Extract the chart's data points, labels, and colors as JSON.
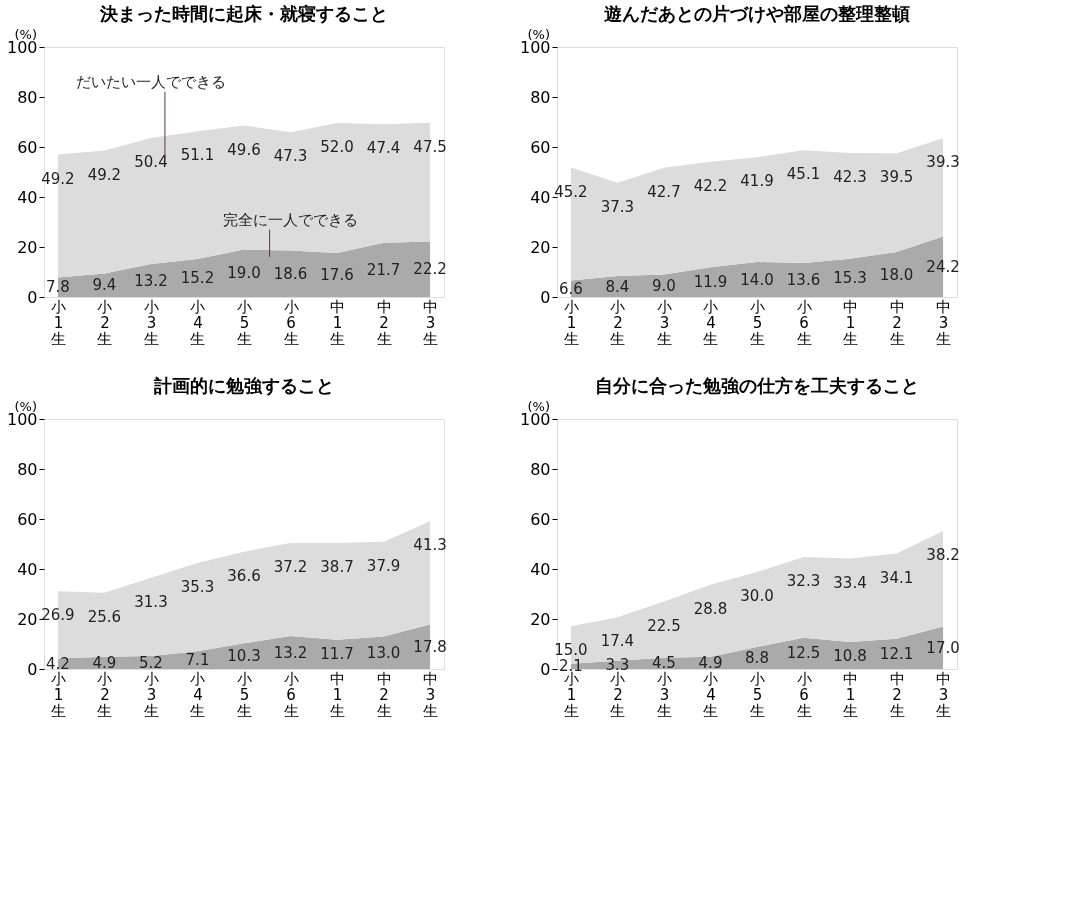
{
  "chart_data": [
    {
      "type": "area",
      "title": "決まった時間に起床・就寝すること",
      "ylabel": "(%)",
      "categories": [
        "小1生",
        "小2生",
        "小3生",
        "小4生",
        "小5生",
        "小6生",
        "中1生",
        "中2生",
        "中3生"
      ],
      "stacked": true,
      "ylim": [
        0,
        100
      ],
      "yticks": [
        0,
        20,
        40,
        60,
        80,
        100
      ],
      "grid": false,
      "series": [
        {
          "name": "完全に一人でできる",
          "color": "#aaaaaa",
          "values": [
            7.8,
            9.4,
            13.2,
            15.2,
            19.0,
            18.6,
            17.6,
            21.7,
            22.2
          ],
          "value_labels": [
            "7.8",
            "9.4",
            "13.2",
            "15.2",
            "19.0",
            "18.6",
            "17.6",
            "21.7",
            "22.2"
          ]
        },
        {
          "name": "だいたい一人でできる",
          "color": "#dcdcdc",
          "values": [
            49.2,
            49.2,
            50.4,
            51.1,
            49.6,
            47.3,
            52.0,
            47.4,
            47.5
          ],
          "value_labels": [
            "49.2",
            "49.2",
            "50.4",
            "51.1",
            "49.6",
            "47.3",
            "52.0",
            "47.4",
            "47.5"
          ]
        }
      ]
    },
    {
      "type": "area",
      "title": "遊んだあとの片づけや部屋の整理整頓",
      "ylabel": "(%)",
      "categories": [
        "小1生",
        "小2生",
        "小3生",
        "小4生",
        "小5生",
        "小6生",
        "中1生",
        "中2生",
        "中3生"
      ],
      "stacked": true,
      "ylim": [
        0,
        100
      ],
      "yticks": [
        0,
        20,
        40,
        60,
        80,
        100
      ],
      "grid": false,
      "series": [
        {
          "color": "#aaaaaa",
          "values": [
            6.6,
            8.4,
            9.0,
            11.9,
            14.0,
            13.6,
            15.3,
            18.0,
            24.2
          ],
          "value_labels": [
            "6.6",
            "8.4",
            "9.0",
            "11.9",
            "14.0",
            "13.6",
            "15.3",
            "18.0",
            "24.2"
          ]
        },
        {
          "color": "#dcdcdc",
          "values": [
            45.2,
            37.3,
            42.7,
            42.2,
            41.9,
            45.1,
            42.3,
            39.5,
            39.3
          ],
          "value_labels": [
            "45.2",
            "37.3",
            "42.7",
            "42.2",
            "41.9",
            "45.1",
            "42.3",
            "39.5",
            "39.3"
          ]
        }
      ]
    },
    {
      "type": "area",
      "title": "計画的に勉強すること",
      "ylabel": "(%)",
      "categories": [
        "小1生",
        "小2生",
        "小3生",
        "小4生",
        "小5生",
        "小6生",
        "中1生",
        "中2生",
        "中3生"
      ],
      "stacked": true,
      "ylim": [
        0,
        100
      ],
      "yticks": [
        0,
        20,
        40,
        60,
        80,
        100
      ],
      "grid": false,
      "series": [
        {
          "color": "#aaaaaa",
          "values": [
            4.2,
            4.9,
            5.2,
            7.1,
            10.3,
            13.2,
            11.7,
            13.0,
            17.8
          ],
          "value_labels": [
            "4.2",
            "4.9",
            "5.2",
            "7.1",
            "10.3",
            "13.2",
            "11.7",
            "13.0",
            "17.8"
          ]
        },
        {
          "color": "#dcdcdc",
          "values": [
            26.9,
            25.6,
            31.3,
            35.3,
            36.6,
            37.2,
            38.7,
            37.9,
            41.3
          ],
          "value_labels": [
            "26.9",
            "25.6",
            "31.3",
            "35.3",
            "36.6",
            "37.2",
            "38.7",
            "37.9",
            "41.3"
          ]
        }
      ]
    },
    {
      "type": "area",
      "title": "自分に合った勉強の仕方を工夫すること",
      "ylabel": "(%)",
      "categories": [
        "小1生",
        "小2生",
        "小3生",
        "小4生",
        "小5生",
        "小6生",
        "中1生",
        "中2生",
        "中3生"
      ],
      "stacked": true,
      "ylim": [
        0,
        100
      ],
      "yticks": [
        0,
        20,
        40,
        60,
        80,
        100
      ],
      "grid": false,
      "series": [
        {
          "color": "#aaaaaa",
          "values": [
            2.1,
            3.3,
            4.5,
            4.9,
            8.8,
            12.5,
            10.8,
            12.1,
            17.0
          ],
          "value_labels": [
            "2.1",
            "3.3",
            "4.5",
            "4.9",
            "8.8",
            "12.5",
            "10.8",
            "12.1",
            "17.0"
          ]
        },
        {
          "color": "#dcdcdc",
          "values": [
            15.0,
            17.4,
            22.5,
            28.8,
            30.0,
            32.3,
            33.4,
            34.1,
            38.2
          ],
          "value_labels": [
            "15.0",
            "17.4",
            "22.5",
            "28.8",
            "30.0",
            "32.3",
            "33.4",
            "34.1",
            "38.2"
          ]
        }
      ]
    }
  ]
}
